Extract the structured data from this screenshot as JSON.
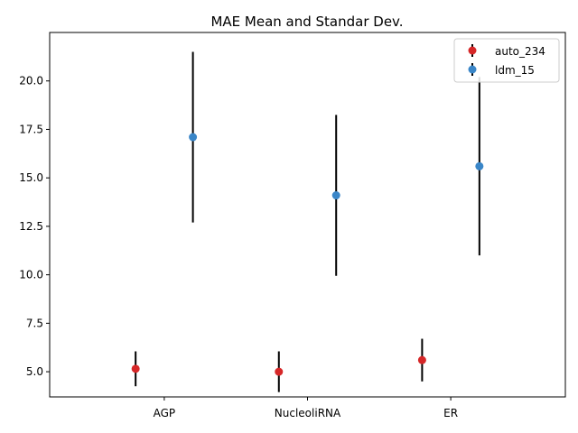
{
  "chart_data": {
    "type": "scatter",
    "title": "MAE Mean and Standar Dev.",
    "xlabel": "",
    "ylabel": "",
    "categories": [
      "AGP",
      "NucleoliRNA",
      "ER"
    ],
    "ylim": [
      3.7,
      22.5
    ],
    "yticks": [
      "5.0",
      "7.5",
      "10.0",
      "12.5",
      "15.0",
      "17.5",
      "20.0"
    ],
    "grid": false,
    "legend_position": "top-right",
    "error_bar_color": "#000000",
    "series": [
      {
        "name": "auto_234",
        "color": "#d62728",
        "offset": -0.2,
        "values": [
          5.15,
          5.0,
          5.6
        ],
        "errors": [
          0.9,
          1.05,
          1.1
        ]
      },
      {
        "name": "ldm_15",
        "color": "#3a86c8",
        "offset": 0.2,
        "values": [
          17.1,
          14.1,
          15.6
        ],
        "errors": [
          4.4,
          4.15,
          4.6
        ]
      }
    ]
  }
}
